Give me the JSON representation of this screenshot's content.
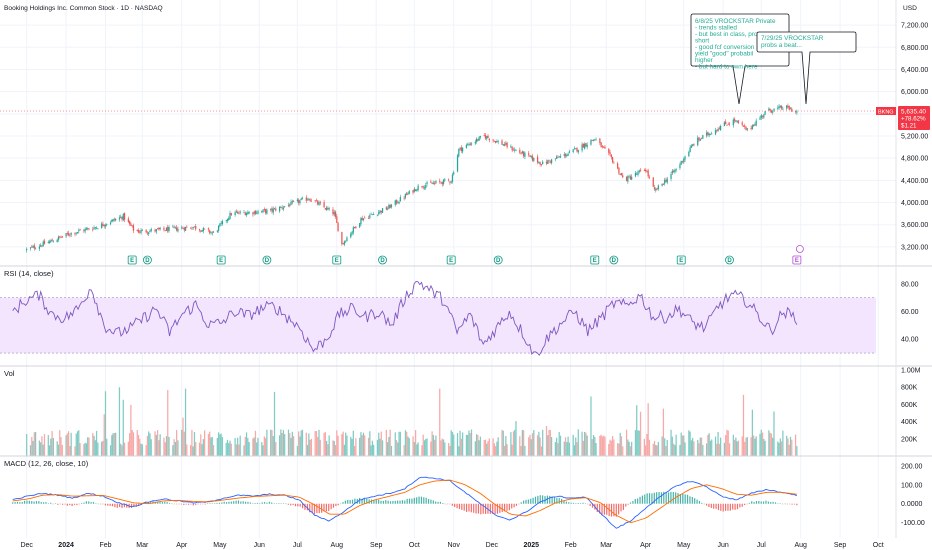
{
  "title": "Booking Holdings Inc. Common Stock · 1D · NASDAQ",
  "currency": "USD",
  "colors": {
    "up": "#26a69a",
    "down": "#ef5350",
    "rsi": "#7e57c2",
    "rsi_band": "#f3e5fd",
    "macd_line": "#2962ff",
    "signal_line": "#ff6d00",
    "vol_up": "#80cbc4",
    "vol_down": "#f7a9a7",
    "price_tag": "#f23645",
    "event_green": "#089981",
    "event_purple": "#b04fd6"
  },
  "price_tag": {
    "symbol": "BKNG",
    "price": "5,635.40",
    "change": "+78.62%",
    "extra": "$1.21"
  },
  "notes": [
    {
      "lines": [
        "6/8/25 VROCKSTAR Private",
        "- trends stalled",
        "- but best in class, pro",
        "short",
        "- good fcf conversion",
        "yield \"good\" probabil",
        "higher",
        "- but hard to own here"
      ]
    },
    {
      "lines": [
        "7/29/25 VROCKSTAR",
        "probs a beat..."
      ]
    }
  ],
  "panes": {
    "rsi": {
      "title": "RSI (14, close)"
    },
    "volume": {
      "title": "Vol"
    },
    "macd": {
      "title": "MACD (12, 26, close, 10)"
    }
  },
  "event_markers": {
    "earnings_symbol": "E",
    "dividend_symbol": "D"
  },
  "chart_data": [
    {
      "type": "candlestick",
      "name": "price",
      "y_axis_ticks": [
        "3,200.00",
        "3,600.00",
        "4,000.00",
        "4,400.00",
        "4,800.00",
        "5,200.00",
        "5,600.00",
        "6,000.00",
        "6,400.00",
        "6,800.00",
        "7,200.00"
      ],
      "ylim": [
        3000,
        7400
      ],
      "x_tick_labels": [
        "Dec",
        "2024",
        "Feb",
        "Mar",
        "Apr",
        "May",
        "Jun",
        "Jul",
        "Aug",
        "Sep",
        "Oct",
        "Nov",
        "Dec",
        "2025",
        "Feb",
        "Mar",
        "Apr",
        "May",
        "Jun",
        "Jul",
        "Aug",
        "Sep",
        "Oct"
      ],
      "close_trend": [
        {
          "date": "2023-12-01",
          "value": 3150
        },
        {
          "date": "2023-12-20",
          "value": 3300
        },
        {
          "date": "2024-01-05",
          "value": 3450
        },
        {
          "date": "2024-01-25",
          "value": 3560
        },
        {
          "date": "2024-02-15",
          "value": 3750
        },
        {
          "date": "2024-02-24",
          "value": 3480
        },
        {
          "date": "2024-03-15",
          "value": 3500
        },
        {
          "date": "2024-04-10",
          "value": 3560
        },
        {
          "date": "2024-04-26",
          "value": 3450
        },
        {
          "date": "2024-05-10",
          "value": 3800
        },
        {
          "date": "2024-06-10",
          "value": 3850
        },
        {
          "date": "2024-07-10",
          "value": 4080
        },
        {
          "date": "2024-07-30",
          "value": 3800
        },
        {
          "date": "2024-08-05",
          "value": 3250
        },
        {
          "date": "2024-08-20",
          "value": 3700
        },
        {
          "date": "2024-09-10",
          "value": 3900
        },
        {
          "date": "2024-10-05",
          "value": 4300
        },
        {
          "date": "2024-10-30",
          "value": 4400
        },
        {
          "date": "2024-11-05",
          "value": 4950
        },
        {
          "date": "2024-11-25",
          "value": 5200
        },
        {
          "date": "2024-12-10",
          "value": 5050
        },
        {
          "date": "2025-01-10",
          "value": 4700
        },
        {
          "date": "2025-02-01",
          "value": 4900
        },
        {
          "date": "2025-02-20",
          "value": 5150
        },
        {
          "date": "2025-03-05",
          "value": 4800
        },
        {
          "date": "2025-03-15",
          "value": 4400
        },
        {
          "date": "2025-04-01",
          "value": 4600
        },
        {
          "date": "2025-04-08",
          "value": 4200
        },
        {
          "date": "2025-04-25",
          "value": 4600
        },
        {
          "date": "2025-05-10",
          "value": 5100
        },
        {
          "date": "2025-06-01",
          "value": 5400
        },
        {
          "date": "2025-06-10",
          "value": 5480
        },
        {
          "date": "2025-06-20",
          "value": 5300
        },
        {
          "date": "2025-07-05",
          "value": 5650
        },
        {
          "date": "2025-07-20",
          "value": 5720
        },
        {
          "date": "2025-07-29",
          "value": 5635
        }
      ]
    },
    {
      "type": "line",
      "name": "RSI",
      "y_axis_ticks": [
        "40.00",
        "60.00",
        "80.00"
      ],
      "ylim": [
        25,
        90
      ],
      "band": [
        30,
        70
      ],
      "values": [
        60,
        68,
        72,
        58,
        55,
        62,
        78,
        50,
        44,
        48,
        55,
        62,
        45,
        58,
        65,
        50,
        52,
        60,
        57,
        62,
        64,
        56,
        48,
        32,
        40,
        58,
        62,
        56,
        60,
        50,
        70,
        82,
        75,
        68,
        45,
        58,
        36,
        48,
        60,
        45,
        28,
        42,
        52,
        60,
        46,
        55,
        66,
        64,
        72,
        56,
        56,
        62,
        52,
        48,
        64,
        72,
        69,
        58,
        46,
        60,
        55
      ]
    },
    {
      "type": "bar",
      "name": "Volume",
      "y_axis_ticks": [
        "200K",
        "400K",
        "600K",
        "800K",
        "1.00M"
      ],
      "ylim": [
        0,
        1000000
      ]
    },
    {
      "type": "line",
      "name": "MACD",
      "y_axis_ticks": [
        "-100.00",
        "0.0000",
        "100.00",
        "200.00"
      ],
      "ylim": [
        -170,
        220
      ],
      "macd_values": [
        20,
        40,
        55,
        45,
        30,
        55,
        40,
        5,
        -15,
        10,
        25,
        15,
        5,
        10,
        30,
        45,
        40,
        50,
        45,
        20,
        -60,
        -90,
        -40,
        20,
        40,
        55,
        80,
        140,
        135,
        120,
        60,
        0,
        -60,
        -85,
        -45,
        10,
        40,
        30,
        35,
        -50,
        -130,
        -90,
        -20,
        40,
        95,
        120,
        90,
        40,
        20,
        55,
        75,
        60,
        45
      ],
      "signal_values": [
        15,
        25,
        45,
        48,
        40,
        42,
        44,
        25,
        5,
        0,
        15,
        18,
        12,
        10,
        20,
        30,
        38,
        42,
        45,
        35,
        -5,
        -55,
        -55,
        -10,
        20,
        40,
        60,
        100,
        120,
        125,
        100,
        55,
        -5,
        -55,
        -65,
        -35,
        5,
        25,
        32,
        5,
        -60,
        -100,
        -75,
        -20,
        35,
        80,
        100,
        80,
        50,
        45,
        60,
        60,
        50
      ]
    }
  ]
}
